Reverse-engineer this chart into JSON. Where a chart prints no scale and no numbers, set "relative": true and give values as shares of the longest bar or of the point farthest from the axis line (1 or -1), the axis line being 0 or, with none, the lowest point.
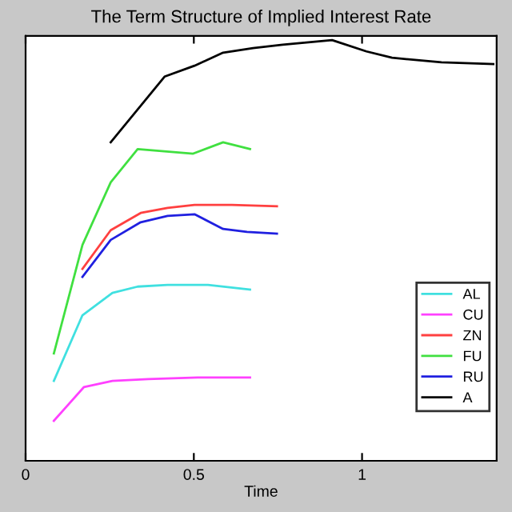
{
  "chart_data": {
    "type": "line",
    "title": "The Term Structure of Implied Interest Rate",
    "xlabel": "Time",
    "relative": true,
    "xlim": [
      0,
      1.4
    ],
    "xticks": [
      0,
      0.5,
      1
    ],
    "tick_labels": "x",
    "legend": "bottom right",
    "grid": false,
    "series": [
      {
        "name": "AL",
        "color": "#40e0e0",
        "x": [
          0.084,
          0.169,
          0.258,
          0.333,
          0.422,
          0.542,
          0.667
        ],
        "values": [
          0.19,
          0.346,
          0.399,
          0.414,
          0.418,
          0.418,
          0.407
        ]
      },
      {
        "name": "CU",
        "color": "#ff40ff",
        "x": [
          0.084,
          0.173,
          0.258,
          0.364,
          0.511,
          0.667
        ],
        "values": [
          0.095,
          0.175,
          0.19,
          0.194,
          0.198,
          0.198
        ]
      },
      {
        "name": "ZN",
        "color": "#ff4040",
        "x": [
          0.169,
          0.253,
          0.342,
          0.422,
          0.502,
          0.613,
          0.747
        ],
        "values": [
          0.456,
          0.548,
          0.589,
          0.601,
          0.608,
          0.608,
          0.605
        ]
      },
      {
        "name": "FU",
        "color": "#40e040",
        "x": [
          0.084,
          0.169,
          0.253,
          0.333,
          0.498,
          0.587,
          0.667
        ],
        "values": [
          0.255,
          0.513,
          0.662,
          0.741,
          0.73,
          0.757,
          0.741
        ]
      },
      {
        "name": "RU",
        "color": "#2020e0",
        "x": [
          0.169,
          0.253,
          0.342,
          0.422,
          0.502,
          0.587,
          0.658,
          0.747
        ],
        "values": [
          0.437,
          0.525,
          0.567,
          0.582,
          0.586,
          0.551,
          0.544,
          0.54
        ]
      },
      {
        "name": "A",
        "color": "#000000",
        "x": [
          0.253,
          0.413,
          0.502,
          0.587,
          0.676,
          0.764,
          0.911,
          1.013,
          1.089,
          1.236,
          1.39
        ],
        "values": [
          0.757,
          0.913,
          0.939,
          0.97,
          0.981,
          0.989,
          1.0,
          0.973,
          0.958,
          0.947,
          0.943
        ]
      }
    ]
  }
}
